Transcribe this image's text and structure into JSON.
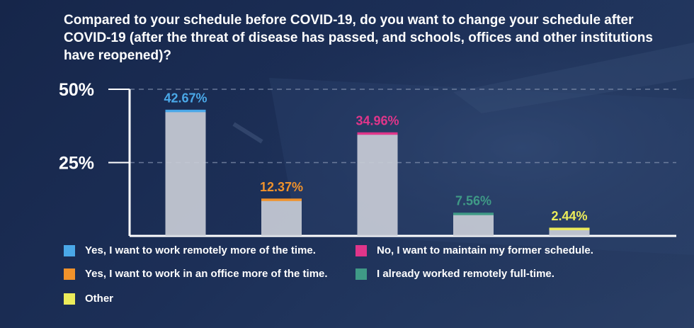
{
  "chart_data": {
    "type": "bar",
    "title": "Compared to your schedule before COVID-19, do you want to change your schedule after COVID-19 (after the threat of disease has passed, and schools, offices and other institutions have reopened)?",
    "categories": [
      "Yes, I want to work remotely more of the time.",
      "Yes, I want to work in an office more of the time.",
      "No, I want to maintain my former schedule.",
      "I already worked remotely full-time.",
      "Other"
    ],
    "values": [
      42.67,
      12.37,
      34.96,
      7.56,
      2.44
    ],
    "data_labels": [
      "42.67%",
      "12.37%",
      "34.96%",
      "7.56%",
      "2.44%"
    ],
    "colors": [
      "#4aa8e8",
      "#f0922b",
      "#e0358a",
      "#3f9a86",
      "#ecec5a"
    ],
    "ylim": [
      0,
      50
    ],
    "yticks": [
      25,
      50
    ],
    "ytick_labels": [
      "25%",
      "50%"
    ],
    "xlabel": "",
    "ylabel": "",
    "grid": "dashed-horizontal",
    "legend": "bottom"
  },
  "legend_items": [
    {
      "label": "Yes, I want to work remotely more of the time.",
      "color": "#4aa8e8"
    },
    {
      "label": "No, I want to maintain my former schedule.",
      "color": "#e0358a"
    },
    {
      "label": "Yes, I want to work in an office more of the time.",
      "color": "#f0922b"
    },
    {
      "label": "I already worked remotely full-time.",
      "color": "#3f9a86"
    },
    {
      "label": "Other",
      "color": "#ecec5a"
    }
  ],
  "bar_fill": "#c8ccd6"
}
